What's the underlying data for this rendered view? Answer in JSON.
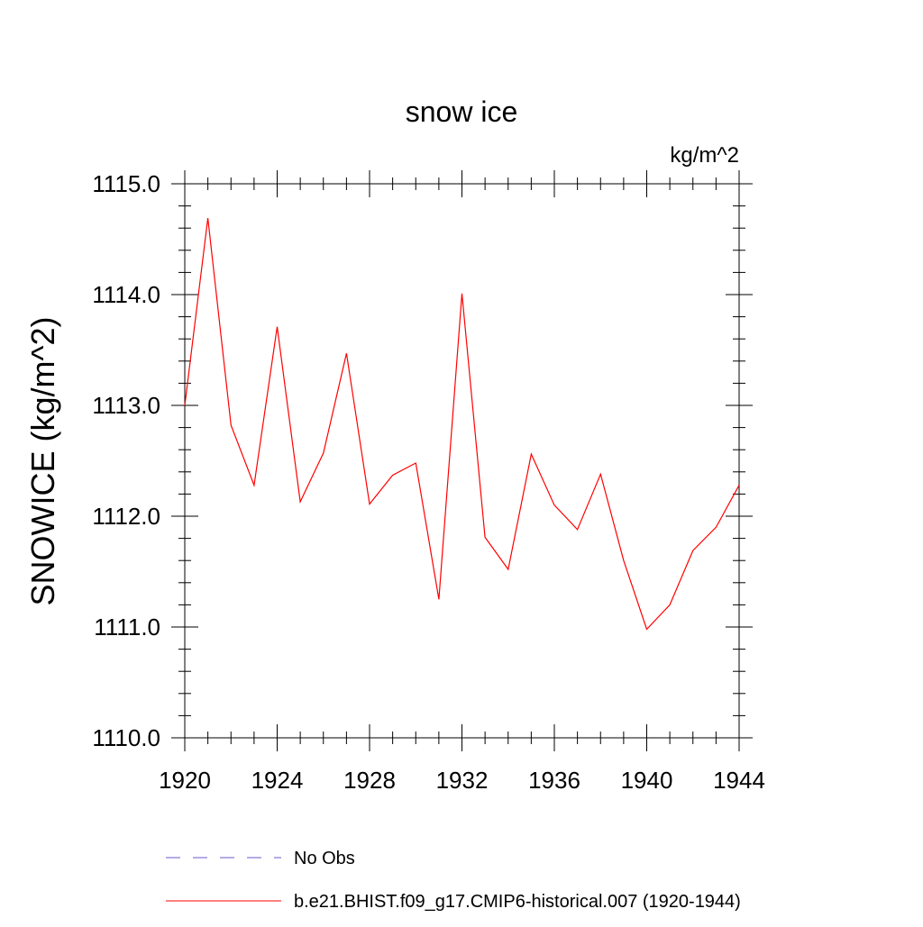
{
  "chart_data": {
    "type": "line",
    "title": "snow ice",
    "units_label": "kg/m^2",
    "ylabel": "SNOWICE  (kg/m^2)",
    "xlabel": "",
    "xlim": [
      1920,
      1944
    ],
    "ylim": [
      1110.0,
      1115.0
    ],
    "x_ticks": [
      1920,
      1924,
      1928,
      1932,
      1936,
      1940,
      1944
    ],
    "x_tick_labels": [
      "1920",
      "1924",
      "1928",
      "1932",
      "1936",
      "1940",
      "1944"
    ],
    "y_ticks": [
      1110.0,
      1111.0,
      1112.0,
      1113.0,
      1114.0,
      1115.0
    ],
    "y_tick_labels": [
      "1110.0",
      "1111.0",
      "1112.0",
      "1113.0",
      "1114.0",
      "1115.0"
    ],
    "x_minor_step": 1,
    "y_minor_step": 0.2,
    "grid": false,
    "legend_position": "bottom",
    "series": [
      {
        "name": "b.e21.BHIST.f09_g17.CMIP6-historical.007 (1920-1944)",
        "color": "#ff0000",
        "style": "solid",
        "x": [
          1920,
          1921,
          1922,
          1923,
          1924,
          1925,
          1926,
          1927,
          1928,
          1929,
          1930,
          1931,
          1932,
          1933,
          1934,
          1935,
          1936,
          1937,
          1938,
          1939,
          1940,
          1941,
          1942,
          1943,
          1944
        ],
        "values": [
          1113.0,
          1114.69,
          1112.82,
          1112.28,
          1113.71,
          1112.13,
          1112.57,
          1113.47,
          1112.11,
          1112.37,
          1112.48,
          1111.25,
          1114.01,
          1111.81,
          1111.52,
          1112.56,
          1112.1,
          1111.88,
          1112.38,
          1111.6,
          1110.98,
          1111.2,
          1111.69,
          1111.9,
          1112.28
        ]
      }
    ],
    "legend": [
      {
        "label": "No Obs",
        "color": "#6a5acd",
        "style": "dashed"
      },
      {
        "label": "b.e21.BHIST.f09_g17.CMIP6-historical.007 (1920-1944)",
        "color": "#ff0000",
        "style": "solid"
      }
    ]
  }
}
